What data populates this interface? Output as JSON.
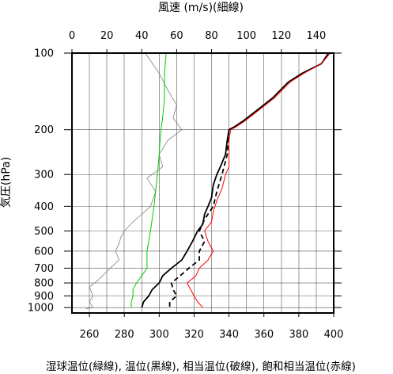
{
  "chart_data": {
    "type": "line",
    "title": "",
    "top_axis": {
      "label": "風速 (m/s)(細線)",
      "range": [
        0,
        150
      ],
      "ticks": [
        0,
        20,
        40,
        60,
        80,
        100,
        120,
        140
      ]
    },
    "bottom_axis": {
      "label": "湿球温位(緑線), 温位(黒線), 相当温位(破線), 飽和相当温位(赤線)",
      "range": [
        250,
        400
      ],
      "ticks": [
        260,
        280,
        300,
        320,
        340,
        360,
        380,
        400
      ]
    },
    "y_axis": {
      "label": "気圧(hPa)",
      "scale": "log",
      "reversed": true,
      "range": [
        100,
        1050
      ],
      "ticks": [
        100,
        200,
        300,
        400,
        500,
        600,
        700,
        800,
        900,
        1000
      ]
    },
    "grid": true,
    "series": [
      {
        "axis": "top",
        "color": "#808080",
        "style": "thin",
        "points": [
          [
            42,
            100
          ],
          [
            50,
            120
          ],
          [
            55,
            140
          ],
          [
            60,
            160
          ],
          [
            58,
            180
          ],
          [
            63,
            200
          ],
          [
            55,
            220
          ],
          [
            50,
            250
          ],
          [
            52,
            280
          ],
          [
            43,
            310
          ],
          [
            48,
            350
          ],
          [
            45,
            400
          ],
          [
            40,
            430
          ],
          [
            35,
            460
          ],
          [
            30,
            500
          ],
          [
            28,
            530
          ],
          [
            27,
            560
          ],
          [
            25,
            600
          ],
          [
            27,
            650
          ],
          [
            22,
            700
          ],
          [
            15,
            780
          ],
          [
            10,
            830
          ],
          [
            12,
            900
          ],
          [
            10,
            950
          ],
          [
            12,
            1000
          ],
          [
            8,
            1010
          ]
        ]
      },
      {
        "axis": "bottom",
        "color": "#00cc00",
        "style": "solid",
        "points": [
          [
            304,
            100
          ],
          [
            303,
            120
          ],
          [
            303,
            150
          ],
          [
            302,
            180
          ],
          [
            301,
            200
          ],
          [
            300,
            250
          ],
          [
            299,
            300
          ],
          [
            297,
            400
          ],
          [
            295,
            500
          ],
          [
            293,
            600
          ],
          [
            293,
            700
          ],
          [
            290,
            750
          ],
          [
            287,
            800
          ],
          [
            285,
            850
          ],
          [
            285,
            900
          ],
          [
            284,
            950
          ],
          [
            284,
            1000
          ]
        ]
      },
      {
        "axis": "bottom",
        "color": "#000000",
        "style": "solid",
        "points": [
          [
            397,
            100
          ],
          [
            393,
            110
          ],
          [
            382,
            120
          ],
          [
            374,
            130
          ],
          [
            365,
            150
          ],
          [
            355,
            170
          ],
          [
            348,
            185
          ],
          [
            343,
            195
          ],
          [
            340,
            200
          ],
          [
            339,
            220
          ],
          [
            338,
            250
          ],
          [
            335,
            280
          ],
          [
            333,
            300
          ],
          [
            331,
            330
          ],
          [
            330,
            370
          ],
          [
            328,
            400
          ],
          [
            326,
            430
          ],
          [
            325,
            470
          ],
          [
            322,
            500
          ],
          [
            319,
            550
          ],
          [
            316,
            600
          ],
          [
            313,
            650
          ],
          [
            307,
            700
          ],
          [
            302,
            750
          ],
          [
            300,
            800
          ],
          [
            296,
            850
          ],
          [
            294,
            900
          ],
          [
            291,
            950
          ],
          [
            290,
            1000
          ]
        ]
      },
      {
        "axis": "bottom",
        "color": "#000000",
        "style": "dashed",
        "points": [
          [
            340,
            200
          ],
          [
            339,
            250
          ],
          [
            336,
            300
          ],
          [
            333,
            350
          ],
          [
            331,
            400
          ],
          [
            326,
            450
          ],
          [
            323,
            500
          ],
          [
            326,
            550
          ],
          [
            323,
            600
          ],
          [
            323,
            650
          ],
          [
            317,
            700
          ],
          [
            312,
            750
          ],
          [
            307,
            800
          ],
          [
            308,
            850
          ],
          [
            310,
            900
          ],
          [
            306,
            950
          ],
          [
            306,
            1000
          ]
        ]
      },
      {
        "axis": "bottom",
        "color": "#ff0000",
        "style": "solid",
        "points": [
          [
            398,
            100
          ],
          [
            393,
            110
          ],
          [
            383,
            120
          ],
          [
            375,
            130
          ],
          [
            366,
            150
          ],
          [
            356,
            170
          ],
          [
            349,
            185
          ],
          [
            344,
            195
          ],
          [
            341,
            200
          ],
          [
            340,
            220
          ],
          [
            340,
            250
          ],
          [
            340,
            280
          ],
          [
            338,
            300
          ],
          [
            336,
            340
          ],
          [
            333,
            380
          ],
          [
            331,
            420
          ],
          [
            330,
            460
          ],
          [
            326,
            500
          ],
          [
            328,
            550
          ],
          [
            331,
            600
          ],
          [
            328,
            650
          ],
          [
            323,
            700
          ],
          [
            321,
            750
          ],
          [
            316,
            800
          ],
          [
            318,
            850
          ],
          [
            320,
            900
          ],
          [
            322,
            950
          ],
          [
            325,
            1000
          ]
        ]
      }
    ]
  }
}
